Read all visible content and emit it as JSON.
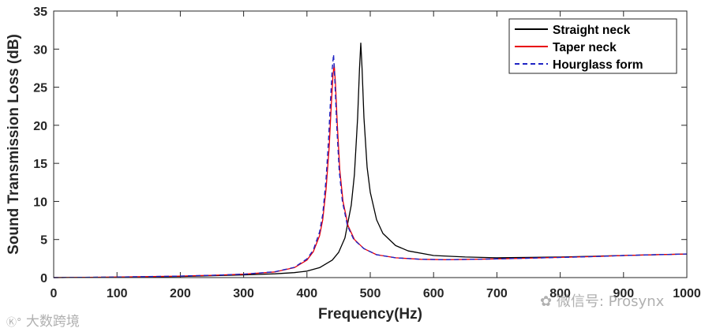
{
  "chart_data": {
    "type": "line",
    "xlabel": "Frequency(Hz)",
    "ylabel": "Sound Transmission Loss (dB)",
    "xlim": [
      0,
      1000
    ],
    "ylim": [
      0,
      35
    ],
    "xticks": [
      "0",
      "100",
      "200",
      "300",
      "400",
      "500",
      "600",
      "700",
      "800",
      "900",
      "1000"
    ],
    "yticks": [
      "0",
      "5",
      "10",
      "15",
      "20",
      "25",
      "30",
      "35"
    ],
    "grid": false,
    "legend_position": "top-right",
    "series": [
      {
        "name": "Straight neck",
        "color": "#000000",
        "style": "solid",
        "x": [
          0,
          100,
          200,
          250,
          300,
          350,
          380,
          400,
          420,
          440,
          450,
          460,
          470,
          475,
          480,
          483,
          485,
          487,
          490,
          495,
          500,
          510,
          520,
          540,
          560,
          600,
          650,
          700,
          750,
          800,
          850,
          900,
          950,
          1000
        ],
        "y": [
          0.0,
          0.05,
          0.15,
          0.25,
          0.35,
          0.5,
          0.65,
          0.85,
          1.3,
          2.3,
          3.3,
          5.2,
          9.5,
          13.5,
          21.0,
          27.5,
          30.8,
          27.5,
          21.0,
          14.5,
          11.2,
          7.6,
          5.8,
          4.2,
          3.5,
          2.9,
          2.7,
          2.6,
          2.65,
          2.7,
          2.8,
          2.9,
          3.0,
          3.1
        ]
      },
      {
        "name": "Taper neck",
        "color": "#e8000b",
        "style": "solid",
        "x": [
          0,
          100,
          200,
          250,
          300,
          350,
          380,
          400,
          410,
          420,
          425,
          430,
          435,
          438,
          441,
          443,
          445,
          448,
          452,
          457,
          465,
          475,
          490,
          510,
          540,
          580,
          620,
          660,
          700,
          750,
          800,
          850,
          900,
          950,
          1000
        ],
        "y": [
          0.0,
          0.07,
          0.2,
          0.3,
          0.45,
          0.75,
          1.3,
          2.3,
          3.4,
          5.5,
          7.6,
          11.5,
          17.0,
          22.0,
          26.5,
          28.0,
          25.5,
          20.0,
          14.0,
          10.0,
          6.8,
          5.0,
          3.8,
          3.0,
          2.6,
          2.4,
          2.35,
          2.4,
          2.45,
          2.55,
          2.65,
          2.75,
          2.9,
          3.0,
          3.1
        ]
      },
      {
        "name": "Hourglass form",
        "color": "#1f24c4",
        "style": "dashed",
        "x": [
          0,
          100,
          200,
          250,
          300,
          350,
          380,
          400,
          410,
          420,
          425,
          430,
          434,
          437,
          440,
          442,
          444,
          447,
          451,
          456,
          464,
          474,
          490,
          510,
          540,
          580,
          620,
          660,
          700,
          750,
          800,
          850,
          900,
          950,
          1000
        ],
        "y": [
          0.0,
          0.07,
          0.2,
          0.3,
          0.45,
          0.78,
          1.35,
          2.45,
          3.6,
          6.0,
          8.3,
          12.8,
          18.0,
          23.0,
          27.5,
          29.3,
          26.0,
          20.0,
          14.0,
          10.0,
          6.8,
          5.0,
          3.8,
          3.0,
          2.6,
          2.4,
          2.35,
          2.4,
          2.45,
          2.55,
          2.65,
          2.75,
          2.9,
          3.0,
          3.1
        ]
      }
    ]
  },
  "watermark": {
    "left_text": "大数跨境",
    "right_text": "微信号: Prosynx"
  }
}
